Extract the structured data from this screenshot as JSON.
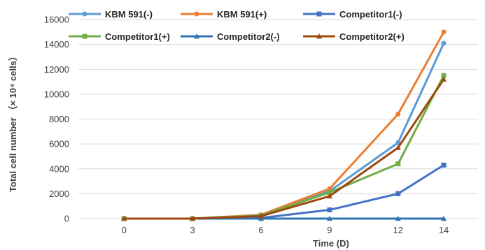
{
  "chart_data": {
    "type": "line",
    "categories": [
      "0",
      "3",
      "6",
      "9",
      "12",
      "14"
    ],
    "xlabel": "Time (D)",
    "ylabel": "Total cell number   （× 10⁴ cells）",
    "ylim": [
      0,
      16000
    ],
    "yticks": [
      0,
      2000,
      4000,
      6000,
      8000,
      10000,
      12000,
      14000,
      16000
    ],
    "grid": true,
    "legend_position": "top",
    "series": [
      {
        "name": "KBM 591(-)",
        "color": "#5b9bd5",
        "marker": "circle",
        "values": [
          0,
          0,
          250,
          2200,
          6100,
          14100
        ]
      },
      {
        "name": "KBM 591(+)",
        "color": "#ed7d31",
        "marker": "circle",
        "values": [
          0,
          0,
          300,
          2400,
          8400,
          15000
        ]
      },
      {
        "name": "Competitor1(-)",
        "color": "#4472c4",
        "marker": "square",
        "values": [
          0,
          0,
          50,
          700,
          2000,
          4300
        ]
      },
      {
        "name": "Competitor1(+)",
        "color": "#70ad47",
        "marker": "square",
        "values": [
          0,
          0,
          250,
          2100,
          4400,
          11500
        ]
      },
      {
        "name": "Competitor2(-)",
        "color": "#2e75b6",
        "marker": "triangle",
        "values": [
          0,
          0,
          0,
          0,
          0,
          0
        ]
      },
      {
        "name": "Competitor2(+)",
        "color": "#9e480e",
        "marker": "triangle",
        "values": [
          0,
          0,
          200,
          1800,
          5700,
          11200
        ]
      }
    ]
  }
}
